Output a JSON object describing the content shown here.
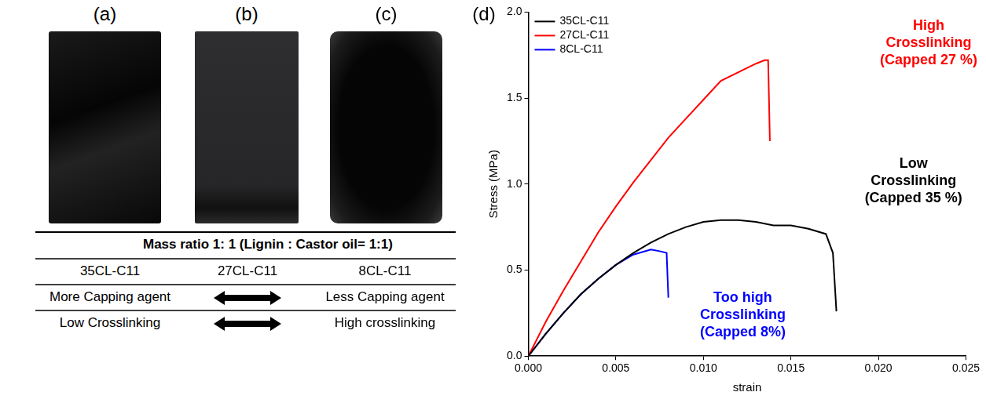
{
  "panel_labels": [
    "(a)",
    "(b)",
    "(c)",
    "(d)"
  ],
  "table": {
    "header": "Mass ratio 1: 1 (Lignin : Castor oil= 1:1)",
    "rows": [
      [
        "35CL-C11",
        "27CL-C11",
        "8CL-C11"
      ],
      [
        "More Capping agent",
        "Less Capping agent"
      ],
      [
        "Low Crosslinking",
        "High crosslinking"
      ]
    ]
  },
  "chart_data": {
    "type": "line",
    "x_label": "strain",
    "y_label": "Stress (MPa)",
    "xlim": [
      0,
      0.025
    ],
    "xticks": [
      {
        "value": 0,
        "label": "0.000"
      },
      {
        "value": 0.005,
        "label": "0.005"
      },
      {
        "value": 0.01,
        "label": "0.010"
      },
      {
        "value": 0.015,
        "label": "0.015"
      },
      {
        "value": 0.02,
        "label": "0.020"
      },
      {
        "value": 0.025,
        "label": "0.025"
      }
    ],
    "ylim": [
      0,
      2
    ],
    "yticks": [
      {
        "value": 0,
        "label": "0.0"
      },
      0.5,
      {
        "value": 1,
        "label": "1.0"
      },
      1.5,
      {
        "value": 2,
        "label": "2.0"
      }
    ],
    "grid": false,
    "legend": "top-left",
    "series": [
      {
        "name": "35CL-C11",
        "color": "#000000",
        "x": [
          0,
          0.001,
          0.002,
          0.003,
          0.004,
          0.005,
          0.006,
          0.007,
          0.008,
          0.009,
          0.01,
          0.011,
          0.012,
          0.013,
          0.014,
          0.015,
          0.016,
          0.017,
          0.0174,
          0.0176
        ],
        "values": [
          0,
          0.13,
          0.25,
          0.36,
          0.45,
          0.53,
          0.6,
          0.66,
          0.71,
          0.75,
          0.78,
          0.79,
          0.79,
          0.78,
          0.76,
          0.76,
          0.74,
          0.71,
          0.6,
          0.26
        ]
      },
      {
        "name": "27CL-C11",
        "color": "#ff0000",
        "x": [
          0,
          0.001,
          0.002,
          0.003,
          0.004,
          0.005,
          0.006,
          0.007,
          0.008,
          0.009,
          0.01,
          0.011,
          0.012,
          0.013,
          0.0135,
          0.0137,
          0.0138
        ],
        "values": [
          0,
          0.2,
          0.38,
          0.55,
          0.72,
          0.87,
          1.01,
          1.14,
          1.27,
          1.38,
          1.49,
          1.6,
          1.65,
          1.7,
          1.72,
          1.72,
          1.25
        ]
      },
      {
        "name": "8CL-C11",
        "color": "#0000ff",
        "x": [
          0,
          0.001,
          0.002,
          0.003,
          0.004,
          0.005,
          0.006,
          0.007,
          0.0075,
          0.0079,
          0.008
        ],
        "values": [
          0,
          0.13,
          0.25,
          0.36,
          0.45,
          0.53,
          0.59,
          0.62,
          0.61,
          0.6,
          0.34
        ]
      }
    ],
    "annotations": [
      {
        "text": "High Crosslinking (Capped 27 %)",
        "color": "#ff0000"
      },
      {
        "text": "Low Crosslinking (Capped 35 %)",
        "color": "#000000"
      },
      {
        "text": "Too high Crosslinking (Capped 8%)",
        "color": "#0000ff"
      }
    ]
  }
}
